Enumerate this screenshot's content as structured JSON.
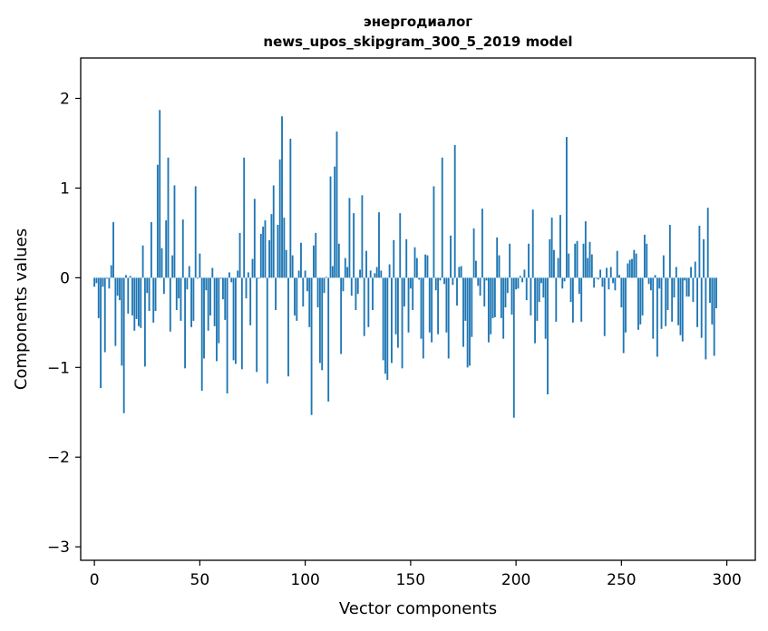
{
  "chart_data": {
    "type": "bar",
    "title": "энергодиалог",
    "subtitle": "news_upos_skipgram_300_5_2019 model",
    "xlabel": "Vector components",
    "ylabel": "Components values",
    "xlim": [
      -6.5,
      313.5
    ],
    "ylim": [
      -3.15,
      2.45
    ],
    "xticks": [
      0,
      50,
      100,
      150,
      200,
      250,
      300
    ],
    "yticks": [
      -3,
      -2,
      -1,
      0,
      1,
      2
    ],
    "ytick_labels": [
      "−3",
      "−2",
      "−1",
      "0",
      "1",
      "2"
    ],
    "bar_color": "#1f77b4",
    "grid": false,
    "values": [
      -0.1,
      -0.06,
      -0.45,
      -1.23,
      -0.1,
      -0.83,
      -0.01,
      -0.12,
      0.14,
      0.62,
      -0.76,
      -0.2,
      -0.25,
      -0.98,
      -1.51,
      0.03,
      -0.4,
      0.02,
      -0.42,
      -0.59,
      -0.46,
      -0.54,
      -0.56,
      0.36,
      -0.99,
      -0.17,
      -0.37,
      0.62,
      -0.5,
      -0.37,
      1.26,
      1.87,
      0.33,
      -0.18,
      0.64,
      1.34,
      -0.6,
      0.25,
      1.03,
      -0.36,
      -0.23,
      -0.48,
      0.65,
      -1.01,
      -0.13,
      0.13,
      -0.55,
      -0.48,
      1.02,
      -0.01,
      0.27,
      -1.26,
      -0.9,
      -0.14,
      -0.59,
      -0.42,
      0.11,
      -0.54,
      -0.93,
      -0.73,
      -0.01,
      -0.24,
      -0.47,
      -1.29,
      0.06,
      -0.05,
      -0.92,
      -0.96,
      0.08,
      0.5,
      -1.02,
      1.34,
      -0.23,
      0.06,
      -0.53,
      0.21,
      0.88,
      -1.05,
      -0.01,
      0.49,
      0.57,
      0.64,
      -1.18,
      0.42,
      0.71,
      1.03,
      -0.36,
      0.59,
      1.32,
      1.8,
      0.67,
      0.31,
      -1.1,
      1.55,
      0.25,
      -0.42,
      -0.48,
      0.08,
      0.39,
      -0.32,
      0.08,
      -0.15,
      -0.55,
      -1.53,
      0.36,
      0.5,
      -0.33,
      -0.95,
      -1.03,
      -0.17,
      0.01,
      -1.38,
      1.13,
      0.13,
      1.24,
      1.63,
      0.38,
      -0.85,
      -0.15,
      0.22,
      0.12,
      0.89,
      -0.2,
      0.72,
      -0.36,
      -0.18,
      0.09,
      0.92,
      -0.65,
      0.3,
      -0.55,
      0.08,
      -0.36,
      0.05,
      0.12,
      0.73,
      0.08,
      -0.92,
      -1.07,
      -1.14,
      0.15,
      -0.95,
      0.42,
      -0.63,
      -0.78,
      0.72,
      -1.01,
      -0.32,
      0.43,
      -0.61,
      -0.12,
      -0.36,
      0.34,
      0.22,
      -0.02,
      -0.68,
      -0.9,
      0.26,
      0.25,
      -0.61,
      -0.72,
      1.02,
      -0.14,
      -0.63,
      -0.03,
      1.34,
      -0.07,
      -0.61,
      -0.9,
      0.47,
      -0.08,
      1.48,
      -0.31,
      0.12,
      0.13,
      -0.77,
      -0.48,
      -1.0,
      -0.98,
      -0.66,
      0.55,
      0.19,
      -0.09,
      -0.2,
      0.77,
      -0.32,
      -0.03,
      -0.72,
      -0.63,
      -0.45,
      -0.44,
      0.45,
      0.25,
      -0.45,
      -0.68,
      -0.33,
      -0.17,
      0.38,
      -0.41,
      -1.56,
      -0.13,
      -0.12,
      0.02,
      -0.05,
      0.09,
      -0.25,
      0.38,
      -0.42,
      0.76,
      -0.73,
      -0.48,
      -0.27,
      -0.06,
      -0.22,
      -0.68,
      -1.3,
      0.43,
      0.67,
      0.31,
      -0.49,
      0.22,
      0.7,
      -0.12,
      -0.04,
      1.57,
      0.27,
      -0.27,
      -0.5,
      0.38,
      0.41,
      -0.18,
      -0.49,
      0.38,
      0.63,
      0.22,
      0.4,
      0.26,
      -0.11,
      -0.01,
      -0.02,
      0.09,
      -0.1,
      -0.65,
      0.11,
      -0.13,
      0.12,
      -0.06,
      -0.14,
      0.3,
      0.03,
      -0.33,
      -0.84,
      -0.61,
      0.16,
      0.2,
      0.21,
      0.31,
      0.27,
      -0.58,
      -0.52,
      -0.42,
      0.48,
      0.38,
      -0.07,
      -0.14,
      -0.68,
      0.03,
      -0.88,
      -0.12,
      -0.57,
      0.25,
      -0.54,
      -0.36,
      0.59,
      -0.49,
      -0.22,
      0.12,
      -0.53,
      -0.64,
      -0.71,
      -0.03,
      -0.21,
      -0.21,
      0.12,
      -0.27,
      0.18,
      -0.55,
      0.58,
      -0.67,
      0.43,
      -0.91,
      0.78,
      -0.28,
      -0.52,
      -0.87,
      -0.34
    ]
  }
}
